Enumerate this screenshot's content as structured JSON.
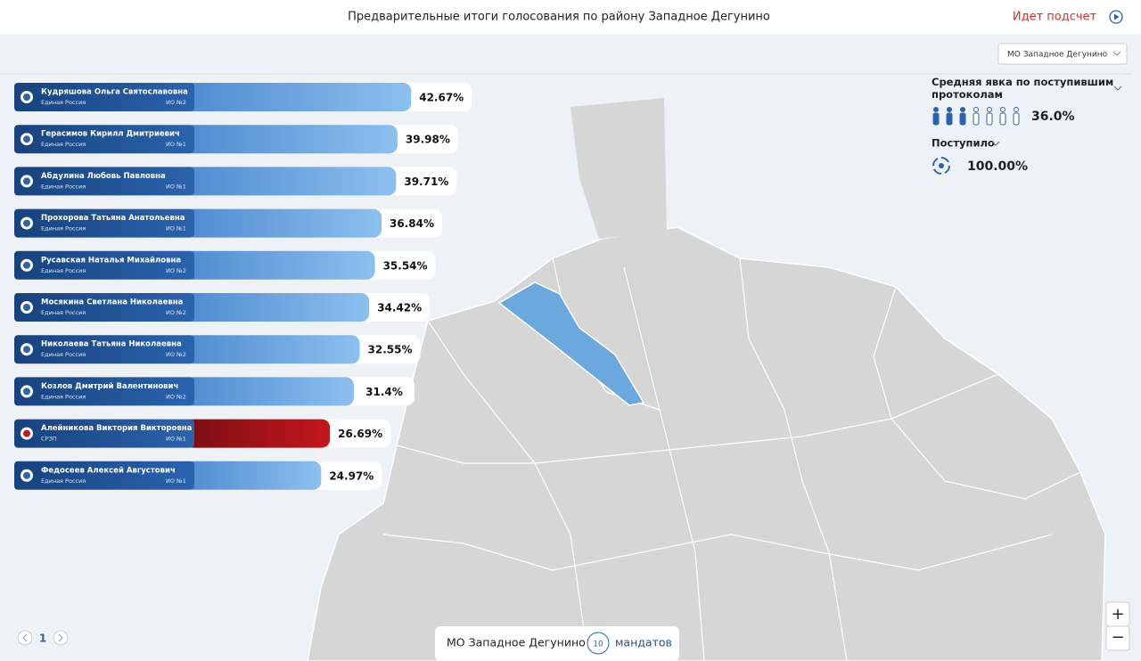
{
  "header": {
    "title": "Предварительные итоги голосования по району Западное Дегунино",
    "status": "Идет подсчет"
  },
  "dropdown": "МО Западное Дегунино",
  "candidates": [
    {
      "name": "Кудряшова Ольга Святославовна",
      "party": "Единая Россия",
      "district": "ИО №2",
      "value": 42.67,
      "value_label": "42.67%"
    },
    {
      "name": "Герасимов Кирилл Дмитриевич",
      "party": "Единая Россия",
      "district": "ИО №1",
      "value": 39.98,
      "value_label": "39.98%"
    },
    {
      "name": "Абдулина Любовь Павловна",
      "party": "Единая Россия",
      "district": "ИО №1",
      "value": 39.71,
      "value_label": "39.71%"
    },
    {
      "name": "Прохорова Татьяна Анатольевна",
      "party": "Единая Россия",
      "district": "ИО №1",
      "value": 36.84,
      "value_label": "36.84%"
    },
    {
      "name": "Русавская Наталья Михайловна",
      "party": "Единая Россия",
      "district": "ИО №2",
      "value": 35.54,
      "value_label": "35.54%"
    },
    {
      "name": "Мосякина Светлана Николаевна",
      "party": "Единая Россия",
      "district": "ИО №2",
      "value": 34.42,
      "value_label": "34.42%"
    },
    {
      "name": "Николаева Татьяна Николаевна",
      "party": "Единая Россия",
      "district": "ИО №2",
      "value": 32.55,
      "value_label": "32.55%"
    },
    {
      "name": "Козлов Дмитрий Валентинович",
      "party": "Единая Россия",
      "district": "ИО №2",
      "value": 31.4,
      "value_label": "31.4%"
    },
    {
      "name": "Алейникова Виктория Викторовна",
      "party": "СРЗП",
      "district": "ИО №1",
      "value": 26.69,
      "value_label": "26.69%",
      "color": "red"
    },
    {
      "name": "Федосеев Алексей Августович",
      "party": "Единая Россия",
      "district": "ИО №1",
      "value": 24.97,
      "value_label": "24.97%"
    }
  ],
  "turnout": {
    "label": "Средняя явка по поступившим протоколам",
    "value": 36.0,
    "value_label": "36.0%"
  },
  "received": {
    "label": "Поступило",
    "value": 100,
    "value_label": "100.00%"
  },
  "footer": {
    "district": "МО Западное Дегунино",
    "mandates": 10,
    "mandates_label": "мандатов"
  },
  "pager": {
    "page": 1
  },
  "zoom": {
    "in": "+",
    "out": "−"
  }
}
